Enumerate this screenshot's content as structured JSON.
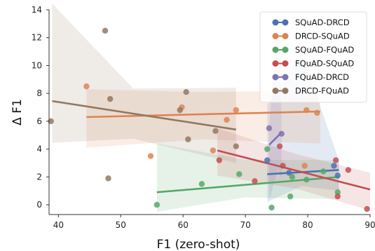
{
  "chart_data": {
    "type": "scatter",
    "title": "",
    "xlabel": "F1 (zero-shot)",
    "ylabel": "Δ F1",
    "xlim": [
      38.5,
      90
    ],
    "ylim": [
      -0.7,
      14
    ],
    "xticks": [
      40,
      50,
      60,
      70,
      80,
      90
    ],
    "yticks": [
      0,
      2,
      4,
      6,
      8,
      10,
      12,
      14
    ],
    "grid": false,
    "legend_position": "top-right",
    "series": [
      {
        "name": "SQuAD-DRCD",
        "color": "#4C72B0",
        "points": [
          [
            73.5,
            3.2
          ],
          [
            77,
            2.3
          ],
          [
            84.2,
            2.8
          ],
          [
            84.8,
            2.1
          ]
        ],
        "fit": [
          [
            73.5,
            2.2
          ],
          [
            85,
            2.5
          ]
        ]
      },
      {
        "name": "DRCD-SQuAD",
        "color": "#DD8452",
        "points": [
          [
            44.5,
            8.5
          ],
          [
            54.8,
            3.5
          ],
          [
            59.8,
            7.0
          ],
          [
            64.8,
            3.9
          ],
          [
            67,
            6.1
          ],
          [
            68.5,
            6.8
          ],
          [
            79.8,
            6.8
          ],
          [
            81.5,
            6.6
          ],
          [
            79.5,
            2.8
          ]
        ],
        "fit": [
          [
            44.5,
            6.3
          ],
          [
            82,
            6.7
          ]
        ]
      },
      {
        "name": "SQuAD-FQuAD",
        "color": "#55A868",
        "points": [
          [
            55.8,
            0.0
          ],
          [
            63,
            1.5
          ],
          [
            69,
            2.2
          ],
          [
            73.5,
            4.0
          ],
          [
            74.2,
            -0.2
          ],
          [
            77.2,
            0.6
          ],
          [
            77.5,
            2.0
          ],
          [
            79.8,
            1.8
          ],
          [
            82.5,
            2.4
          ],
          [
            84.8,
            0.9
          ]
        ],
        "fit": [
          [
            55.8,
            0.9
          ],
          [
            85,
            2.0
          ]
        ]
      },
      {
        "name": "FQuAD-SQuAD",
        "color": "#C44E52",
        "points": [
          [
            65.8,
            3.2
          ],
          [
            71.5,
            1.7
          ],
          [
            75.5,
            4.2
          ],
          [
            76,
            2.8
          ],
          [
            84.5,
            3.2
          ],
          [
            84.8,
            0.6
          ],
          [
            86.5,
            2.5
          ],
          [
            89.5,
            -0.3
          ]
        ],
        "fit": [
          [
            65.5,
            3.9
          ],
          [
            90,
            1.1
          ]
        ]
      },
      {
        "name": "FQuAD-DRCD",
        "color": "#8172B3",
        "points": [
          [
            73.8,
            5.5
          ],
          [
            75.8,
            5.1
          ]
        ],
        "fit": [
          [
            73.8,
            4.3
          ],
          [
            75.8,
            5.2
          ]
        ]
      },
      {
        "name": "DRCD-FQuAD",
        "color": "#937860",
        "points": [
          [
            38.8,
            6.0
          ],
          [
            47.5,
            12.5
          ],
          [
            48,
            1.9
          ],
          [
            48.3,
            7.6
          ],
          [
            59.5,
            6.8
          ],
          [
            60.5,
            8.1
          ],
          [
            60.8,
            4.7
          ],
          [
            65.2,
            5.3
          ],
          [
            68.5,
            4.2
          ]
        ],
        "fit": [
          [
            39,
            7.45
          ],
          [
            68.5,
            5.4
          ]
        ]
      }
    ]
  }
}
